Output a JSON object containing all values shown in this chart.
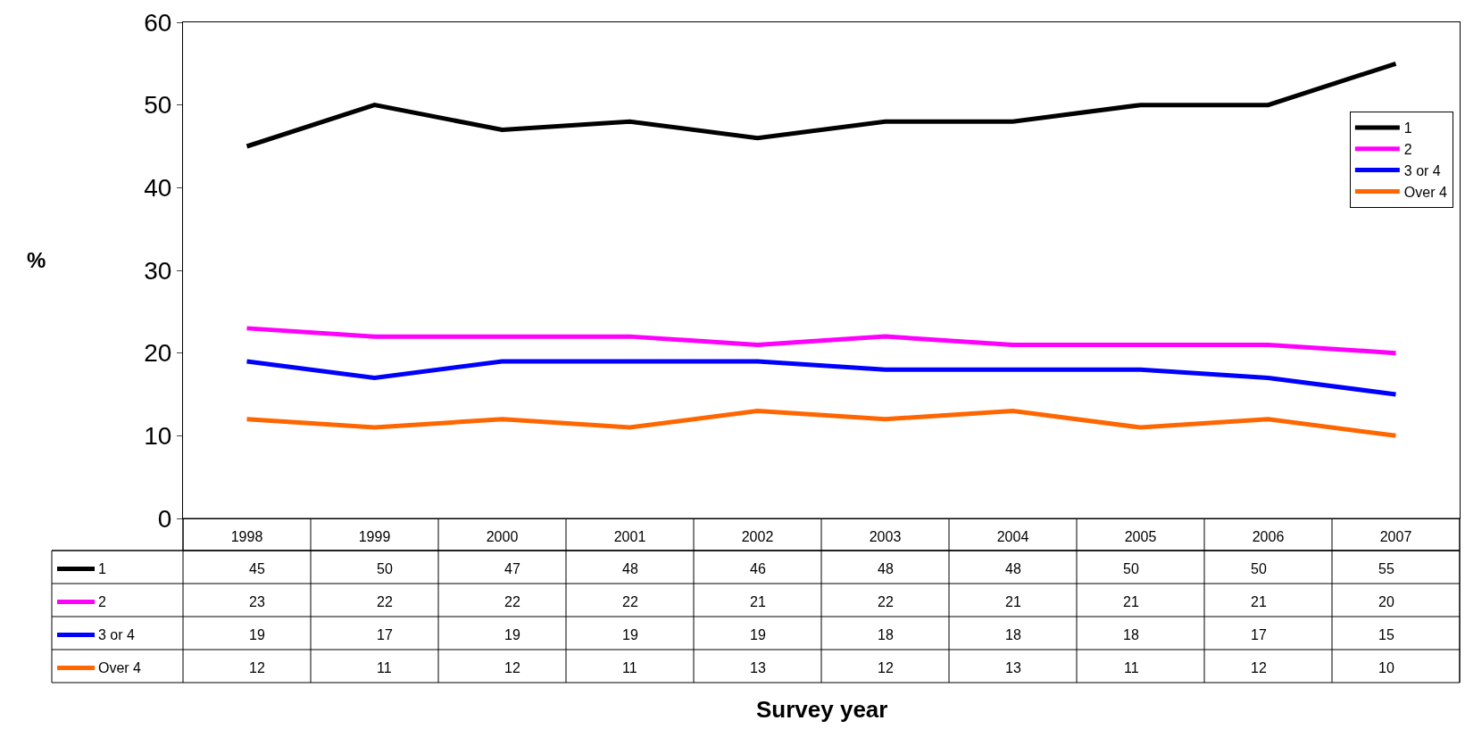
{
  "chart_data": {
    "type": "line",
    "annotations": [
      "Survey year"
    ],
    "ylabel": "%",
    "categories": [
      "1998",
      "1999",
      "2000",
      "2001",
      "2002",
      "2003",
      "2004",
      "2005",
      "2006",
      "2007"
    ],
    "series": [
      {
        "name": "1",
        "color": "#000000",
        "values": [
          45,
          50,
          47,
          48,
          46,
          48,
          48,
          50,
          50,
          55
        ]
      },
      {
        "name": "2",
        "color": "#ff00ff",
        "values": [
          23,
          22,
          22,
          22,
          21,
          22,
          21,
          21,
          21,
          20
        ]
      },
      {
        "name": "3 or 4",
        "color": "#0000ff",
        "values": [
          19,
          17,
          19,
          19,
          19,
          18,
          18,
          18,
          17,
          15
        ]
      },
      {
        "name": "Over 4",
        "color": "#ff6600",
        "values": [
          12,
          11,
          12,
          11,
          13,
          12,
          13,
          11,
          12,
          10
        ]
      }
    ],
    "ylim": [
      0,
      60
    ],
    "yticks": [
      0,
      10,
      20,
      30,
      40,
      50,
      60
    ],
    "legend": "right",
    "marker": "none",
    "line_style": "solid",
    "data_labels": true
  }
}
